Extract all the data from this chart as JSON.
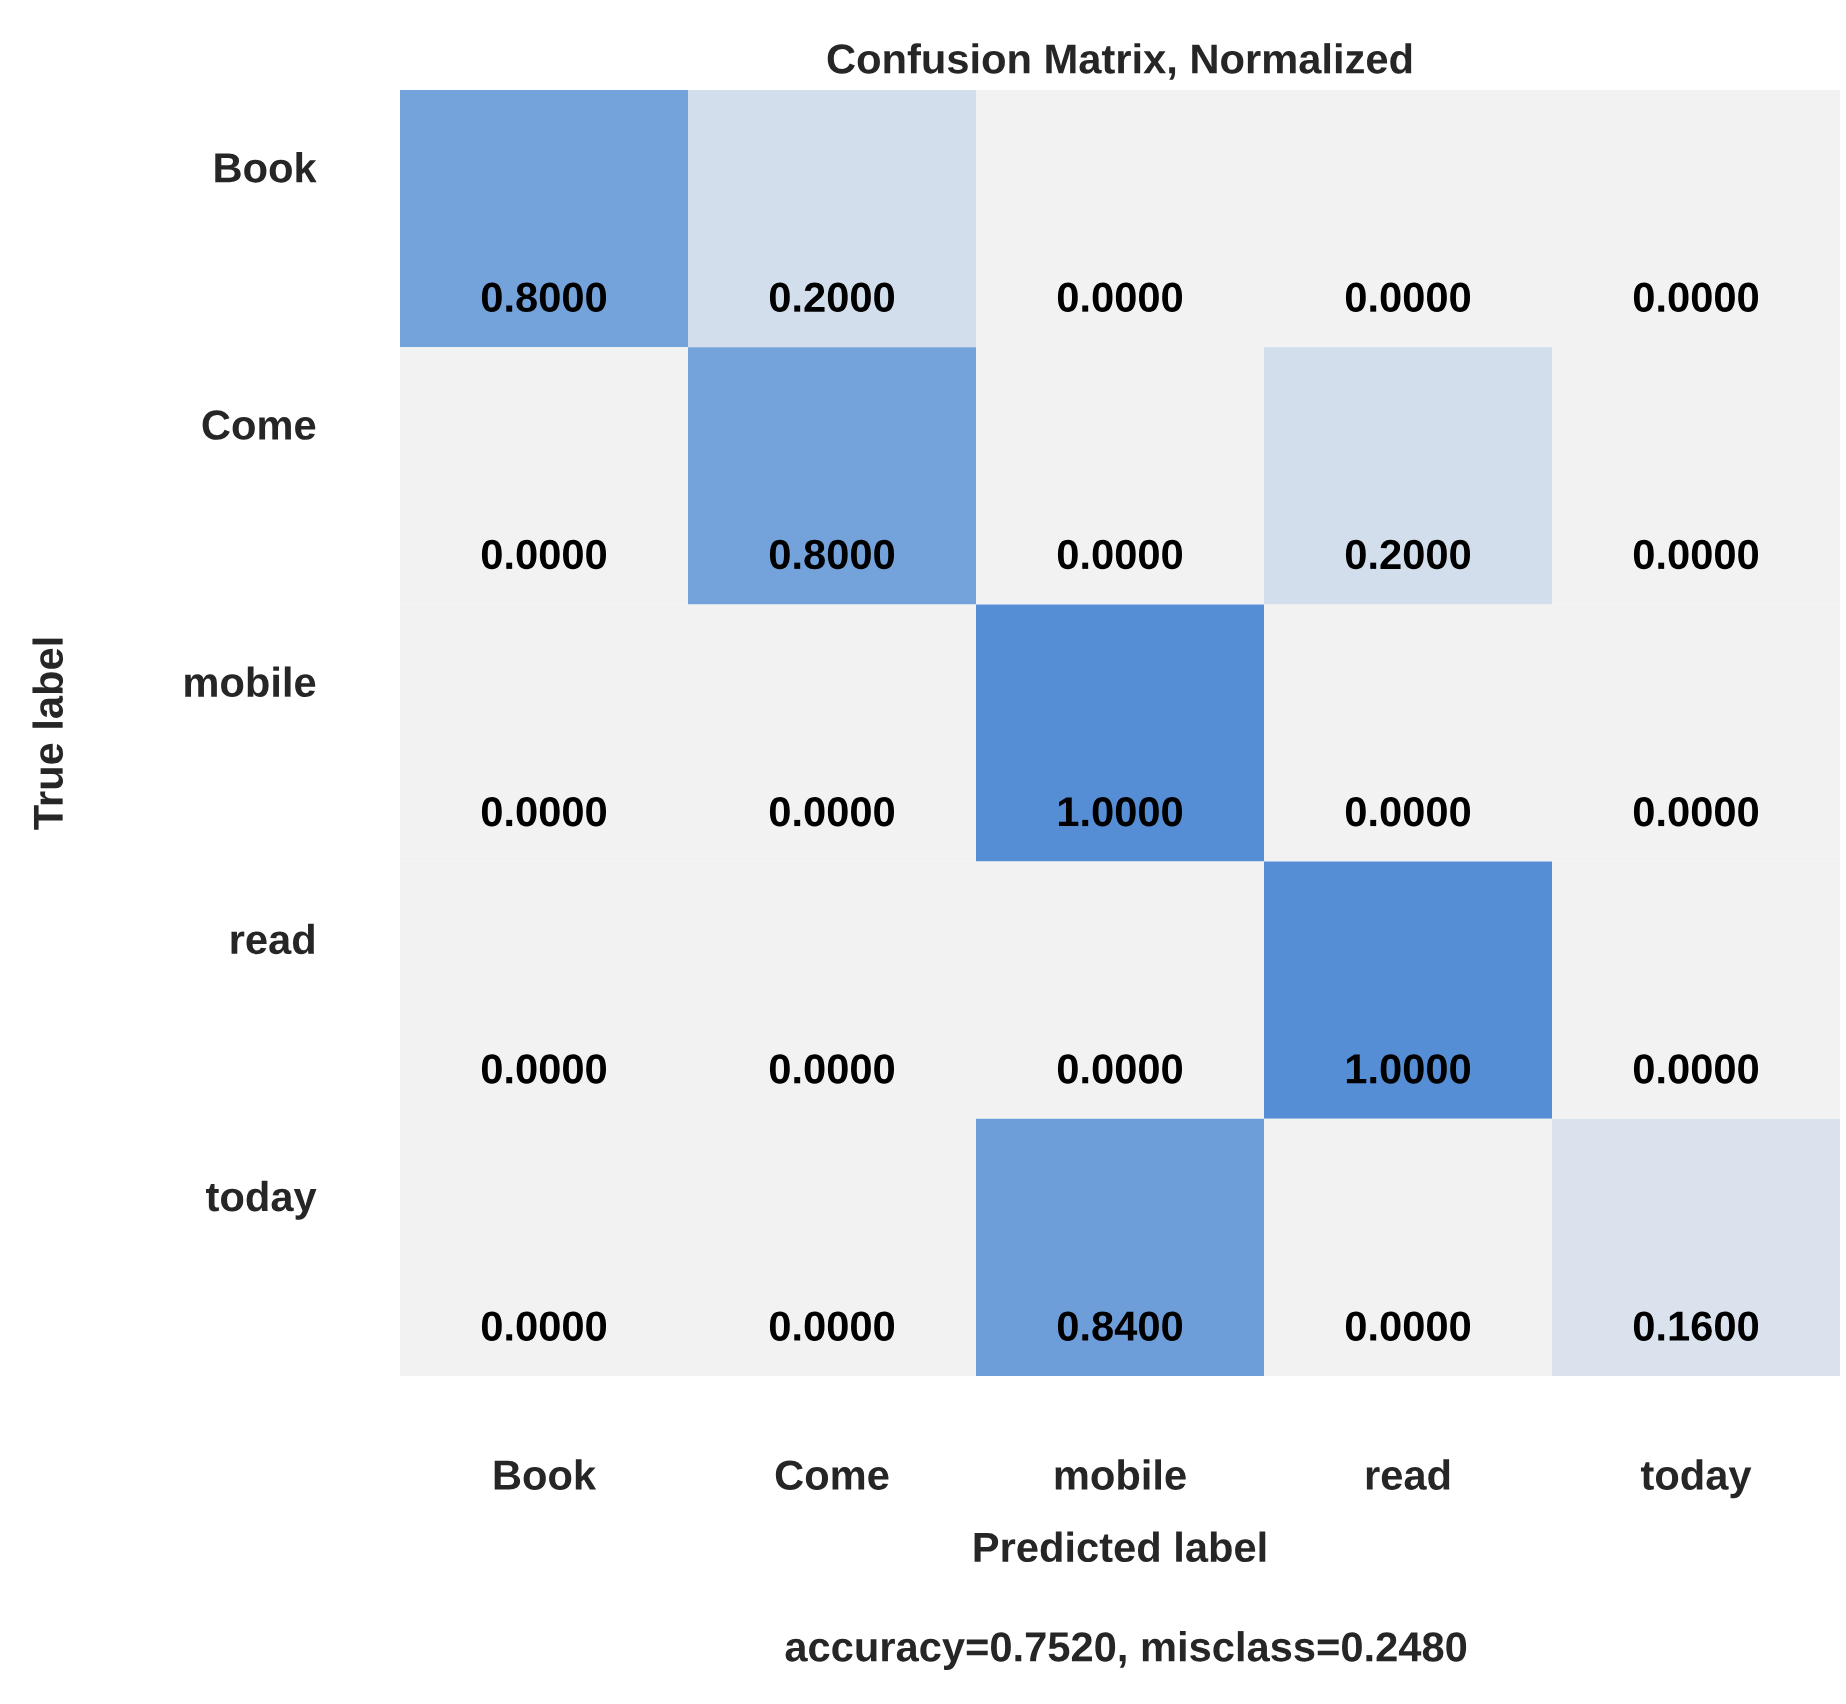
{
  "chart_data": {
    "type": "heatmap",
    "title": "Confusion Matrix, Normalized",
    "xlabel": "Predicted label",
    "ylabel": "True label",
    "annotations": [
      "accuracy=0.7520, misclass=0.2480"
    ],
    "categories": [
      "Book",
      "Come",
      "mobile",
      "read",
      "today"
    ],
    "y_categories": [
      "Book",
      "Come",
      "mobile",
      "read",
      "today"
    ],
    "cells": [
      [
        0.8,
        0.2,
        0.0,
        0.0,
        0.0
      ],
      [
        0.0,
        0.8,
        0.0,
        0.2,
        0.0
      ],
      [
        0.0,
        0.0,
        1.0,
        0.0,
        0.0
      ],
      [
        0.0,
        0.0,
        0.0,
        1.0,
        0.0
      ],
      [
        0.0,
        0.0,
        0.84,
        0.0,
        0.16
      ]
    ],
    "cell_labels": [
      [
        "0.8000",
        "0.2000",
        "0.0000",
        "0.0000",
        "0.0000"
      ],
      [
        "0.0000",
        "0.8000",
        "0.0000",
        "0.2000",
        "0.0000"
      ],
      [
        "0.0000",
        "0.0000",
        "1.0000",
        "0.0000",
        "0.0000"
      ],
      [
        "0.0000",
        "0.0000",
        "0.0000",
        "1.0000",
        "0.0000"
      ],
      [
        "0.0000",
        "0.0000",
        "0.8400",
        "0.0000",
        "0.1600"
      ]
    ],
    "colors": [
      "#f2f2f2",
      "#558ed5"
    ]
  }
}
